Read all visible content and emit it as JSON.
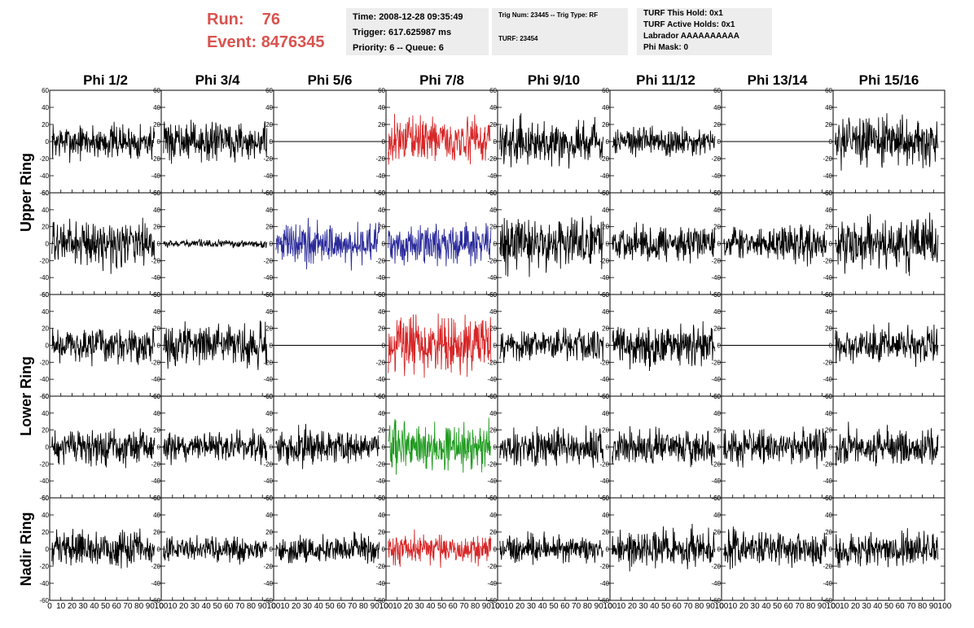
{
  "header": {
    "run_label": "Run:",
    "run_value": "76",
    "event_label": "Event:",
    "event_value": "8476345",
    "info1": [
      "Time: 2008-12-28 09:35:49",
      "Trigger: 617.625987 ms",
      "Priority: 6 -- Queue: 6"
    ],
    "info2": [
      "Trig Num: 23445 -- Trig Type: RF",
      "TURF: 23454"
    ],
    "info3": [
      "TURF This Hold: 0x1",
      "TURF Active Holds: 0x1",
      "Labrador AAAAAAAAAA",
      "Phi Mask: 0"
    ]
  },
  "colors": {
    "title": "#d9534f",
    "red": "#d62728",
    "blue": "#2a2a9a",
    "green": "#1f9a1f",
    "black": "#000000",
    "box": "#ededed"
  },
  "chart_data": {
    "type": "line",
    "columns": [
      "Phi 1/2",
      "Phi 3/4",
      "Phi 5/6",
      "Phi 7/8",
      "Phi 9/10",
      "Phi 11/12",
      "Phi 13/14",
      "Phi 15/16"
    ],
    "ring_labels": [
      "Upper Ring",
      "Lower Ring",
      "Nadir Ring"
    ],
    "xlim": [
      0,
      100
    ],
    "ylim": [
      -60,
      60
    ],
    "yticks": [
      -60,
      -40,
      -20,
      0,
      20,
      40,
      60
    ],
    "xticks": [
      0,
      10,
      20,
      30,
      40,
      50,
      60,
      70,
      80,
      90,
      100
    ],
    "xtick_labels": [
      "0",
      "10",
      "20",
      "30",
      "40",
      "50",
      "60",
      "70",
      "80",
      "90",
      "100"
    ],
    "samples_per_trace": 260,
    "panels": [
      [
        {
          "color": "black",
          "amp": 14
        },
        {
          "color": "black",
          "amp": 15
        },
        {
          "color": "black",
          "amp": 0
        },
        {
          "color": "red",
          "amp": 18
        },
        {
          "color": "black",
          "amp": 17
        },
        {
          "color": "black",
          "amp": 12
        },
        {
          "color": "black",
          "amp": 0
        },
        {
          "color": "black",
          "amp": 19
        }
      ],
      [
        {
          "color": "black",
          "amp": 18
        },
        {
          "color": "black",
          "amp": 3
        },
        {
          "color": "blue",
          "amp": 17
        },
        {
          "color": "blue",
          "amp": 16
        },
        {
          "color": "black",
          "amp": 21
        },
        {
          "color": "black",
          "amp": 14
        },
        {
          "color": "black",
          "amp": 14
        },
        {
          "color": "black",
          "amp": 20
        }
      ],
      [
        {
          "color": "black",
          "amp": 14
        },
        {
          "color": "black",
          "amp": 16
        },
        {
          "color": "black",
          "amp": 0
        },
        {
          "color": "red",
          "amp": 24
        },
        {
          "color": "black",
          "amp": 13
        },
        {
          "color": "black",
          "amp": 17
        },
        {
          "color": "black",
          "amp": 0
        },
        {
          "color": "black",
          "amp": 14
        }
      ],
      [
        {
          "color": "black",
          "amp": 14
        },
        {
          "color": "black",
          "amp": 12
        },
        {
          "color": "black",
          "amp": 14
        },
        {
          "color": "green",
          "amp": 20
        },
        {
          "color": "black",
          "amp": 15
        },
        {
          "color": "black",
          "amp": 14
        },
        {
          "color": "black",
          "amp": 14
        },
        {
          "color": "black",
          "amp": 15
        }
      ],
      [
        {
          "color": "black",
          "amp": 14
        },
        {
          "color": "black",
          "amp": 10
        },
        {
          "color": "black",
          "amp": 11
        },
        {
          "color": "red",
          "amp": 13
        },
        {
          "color": "black",
          "amp": 11
        },
        {
          "color": "black",
          "amp": 15
        },
        {
          "color": "black",
          "amp": 14
        },
        {
          "color": "black",
          "amp": 13
        }
      ]
    ]
  }
}
